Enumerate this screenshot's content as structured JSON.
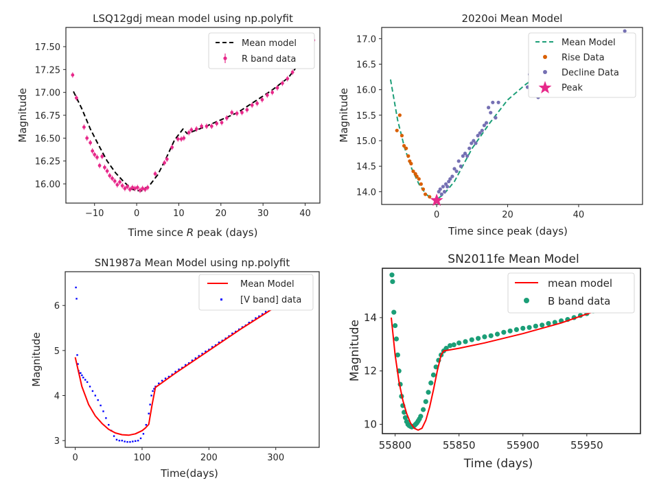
{
  "chart_data": [
    {
      "type": "scatter",
      "title": "LSQ12gdj mean model using np.polyfit",
      "xlabel_pre": "Time since ",
      "xlabel_italic": "R",
      "xlabel_post": " peak (days)",
      "ylabel": "Magnitude",
      "xlim": [
        -16.8,
        43.5
      ],
      "ylim": [
        17.71,
        15.79
      ],
      "y_inverted": true,
      "xticks": [
        -10,
        0,
        10,
        20,
        30,
        40
      ],
      "xtick_labels": [
        "−10",
        "0",
        "10",
        "20",
        "30",
        "40"
      ],
      "yticks": [
        16.0,
        16.25,
        16.5,
        16.75,
        17.0,
        17.25,
        17.5
      ],
      "ytick_labels": [
        "16.00",
        "16.25",
        "16.50",
        "16.75",
        "17.00",
        "17.25",
        "17.50"
      ],
      "legend_loc": "upper right",
      "series": [
        {
          "name": "Mean model",
          "style": "dashed-line",
          "color": "#000000",
          "x": [
            -15,
            -13,
            -11,
            -9,
            -7,
            -5,
            -3,
            -1,
            1,
            3,
            5,
            7,
            9,
            11,
            12,
            16,
            20,
            24,
            28,
            32,
            36,
            40,
            42
          ],
          "y": [
            17.01,
            16.82,
            16.6,
            16.42,
            16.25,
            16.12,
            16.02,
            15.94,
            15.92,
            15.98,
            16.1,
            16.28,
            16.48,
            16.6,
            16.55,
            16.62,
            16.7,
            16.78,
            16.9,
            17.02,
            17.16,
            17.4,
            17.58
          ]
        },
        {
          "name": "R band data",
          "style": "errorbar-points",
          "color": "#e7298a",
          "x": [
            -15.2,
            -14.3,
            -12.5,
            -11.8,
            -11.0,
            -10.5,
            -10.0,
            -9.4,
            -8.8,
            -8.2,
            -7.6,
            -7.0,
            -6.4,
            -5.8,
            -5.2,
            -4.6,
            -4.0,
            -3.4,
            -2.8,
            -2.2,
            -1.6,
            -1.0,
            -0.4,
            0.2,
            0.8,
            1.4,
            2.0,
            2.6,
            4.4,
            6.6,
            7.2,
            8.4,
            9.8,
            10.6,
            11.2,
            12.4,
            13.0,
            14.2,
            15.4,
            16.6,
            17.8,
            19.0,
            20.2,
            21.4,
            22.6,
            23.8,
            25.0,
            26.2,
            27.4,
            28.6,
            29.8,
            31.0,
            32.2,
            33.4,
            34.6,
            35.8,
            37.0,
            38.2,
            39.4,
            40.6,
            42.0
          ],
          "y": [
            17.19,
            16.94,
            16.62,
            16.5,
            16.45,
            16.36,
            16.32,
            16.29,
            16.2,
            16.3,
            16.18,
            16.14,
            16.09,
            16.06,
            16.03,
            15.99,
            16.02,
            15.98,
            15.95,
            15.97,
            15.94,
            15.96,
            15.95,
            15.96,
            15.93,
            15.95,
            15.94,
            15.96,
            16.11,
            16.23,
            16.27,
            16.4,
            16.49,
            16.49,
            16.5,
            16.56,
            16.59,
            16.6,
            16.63,
            16.63,
            16.63,
            16.66,
            16.67,
            16.72,
            16.78,
            16.77,
            16.78,
            16.81,
            16.86,
            16.88,
            16.92,
            16.97,
            17.0,
            17.05,
            17.1,
            17.15,
            17.22,
            17.3,
            17.37,
            17.45,
            17.57
          ]
        }
      ]
    },
    {
      "type": "scatter",
      "title": "2020oi Mean Model",
      "xlabel": "Time since peak (days)",
      "ylabel": "Magnitude",
      "xlim": [
        -15.5,
        58
      ],
      "ylim": [
        17.22,
        13.75
      ],
      "y_inverted": true,
      "xticks": [
        0,
        20,
        40
      ],
      "xtick_labels": [
        "0",
        "20",
        "40"
      ],
      "yticks": [
        14.0,
        14.5,
        15.0,
        15.5,
        16.0,
        16.5,
        17.0
      ],
      "ytick_labels": [
        "14.0",
        "14.5",
        "15.0",
        "15.5",
        "16.0",
        "16.5",
        "17.0"
      ],
      "legend_loc": "upper right",
      "series": [
        {
          "name": "Mean Model",
          "style": "dashed-line",
          "color": "#1b9e77",
          "x": [
            -13.0,
            -11.0,
            -9.0,
            -7.0,
            -5.0,
            -3.0,
            -1.0,
            0.0,
            2.0,
            5.0,
            10.0,
            15.0,
            20.0,
            25.0,
            30.0,
            35.0,
            40.0,
            43.0
          ],
          "y": [
            16.2,
            15.4,
            14.85,
            14.45,
            14.15,
            13.95,
            13.85,
            13.85,
            13.95,
            14.2,
            14.85,
            15.35,
            15.8,
            16.1,
            16.35,
            16.5,
            16.62,
            16.68
          ]
        },
        {
          "name": "Rise Data",
          "style": "points",
          "color": "#d95f02",
          "x": [
            -11.2,
            -10.4,
            -9.8,
            -9.2,
            -8.6,
            -8.0,
            -7.6,
            -7.2,
            -6.6,
            -6.0,
            -5.6,
            -5.0,
            -4.4,
            -3.8,
            -3.2,
            -2.0
          ],
          "y": [
            15.2,
            15.5,
            15.1,
            14.9,
            14.85,
            14.7,
            14.6,
            14.55,
            14.4,
            14.35,
            14.3,
            14.25,
            14.15,
            14.05,
            13.95,
            13.9
          ]
        },
        {
          "name": "Decline Data",
          "style": "points",
          "color": "#7570b3",
          "x": [
            0.6,
            1.0,
            1.4,
            1.8,
            2.2,
            2.6,
            3.0,
            3.4,
            3.8,
            4.4,
            5.0,
            5.6,
            6.2,
            6.8,
            7.4,
            8.0,
            8.6,
            9.2,
            9.8,
            10.4,
            11.0,
            11.6,
            12.2,
            12.8,
            13.4,
            14.0,
            14.6,
            15.2,
            15.8,
            16.6,
            17.4,
            25.6,
            26.2,
            26.8,
            27.4,
            28.0,
            28.6,
            29.2,
            29.8,
            35.0,
            35.6,
            36.2,
            36.8,
            37.4,
            38.0,
            38.6,
            39.2,
            39.8,
            40.4,
            41.0,
            41.6,
            42.2,
            42.8,
            53.0
          ],
          "y": [
            14.0,
            14.05,
            13.95,
            14.1,
            14.0,
            14.15,
            14.1,
            14.2,
            14.25,
            14.3,
            14.45,
            14.4,
            14.6,
            14.5,
            14.7,
            14.75,
            14.7,
            14.85,
            14.95,
            15.0,
            14.95,
            15.1,
            15.15,
            15.2,
            15.3,
            15.35,
            15.65,
            15.55,
            15.75,
            15.45,
            15.75,
            16.05,
            16.3,
            16.0,
            16.85,
            16.35,
            15.85,
            16.2,
            16.45,
            16.45,
            16.55,
            16.6,
            16.5,
            16.55,
            16.4,
            16.65,
            16.7,
            16.5,
            16.3,
            16.65,
            16.7,
            16.75,
            16.72,
            17.15
          ]
        },
        {
          "name": "Peak",
          "style": "star",
          "color": "#e7298a",
          "x": [
            0.0
          ],
          "y": [
            13.83
          ]
        }
      ]
    },
    {
      "type": "scatter",
      "title": "SN1987a Mean Model using np.polyfit",
      "xlabel": "Time(days)",
      "ylabel": "Magnitude",
      "xlim": [
        -15,
        365
      ],
      "ylim": [
        6.75,
        2.85
      ],
      "y_inverted": true,
      "xticks": [
        0,
        100,
        200,
        300
      ],
      "xtick_labels": [
        "0",
        "100",
        "200",
        "300"
      ],
      "yticks": [
        3,
        4,
        5,
        6
      ],
      "ytick_labels": [
        "3",
        "4",
        "5",
        "6"
      ],
      "legend_loc": "upper right",
      "series": [
        {
          "name": "Mean Model",
          "style": "line",
          "color": "#ff0000",
          "x": [
            0,
            10,
            20,
            30,
            40,
            50,
            60,
            70,
            80,
            90,
            100,
            105,
            110,
            115,
            120,
            150,
            200,
            250,
            300,
            350
          ],
          "y": [
            4.85,
            4.2,
            3.8,
            3.55,
            3.38,
            3.25,
            3.17,
            3.13,
            3.12,
            3.15,
            3.22,
            3.28,
            3.36,
            3.8,
            4.18,
            4.5,
            5.0,
            5.5,
            5.97,
            6.5
          ],
          "dense": false
        },
        {
          "name": "[V band] data",
          "style": "small-points",
          "color": "#0000ff",
          "x": [
            1,
            2,
            3,
            4,
            5,
            6,
            8,
            10,
            12,
            15,
            18,
            22,
            26,
            30,
            34,
            38,
            42,
            46,
            50,
            54,
            58,
            62,
            66,
            70,
            74,
            78,
            82,
            86,
            90,
            94,
            98,
            102,
            106,
            110,
            112,
            114,
            116,
            118,
            120,
            125,
            130,
            135,
            140,
            145,
            150,
            155,
            160,
            165,
            170,
            175,
            180,
            185,
            190,
            195,
            200,
            205,
            210,
            215,
            220,
            225,
            230,
            235,
            240,
            245,
            250,
            255,
            260,
            265,
            270,
            275,
            280,
            285,
            290,
            295,
            300,
            305,
            310,
            315,
            320,
            325,
            330,
            335,
            340,
            345,
            350
          ],
          "y": [
            6.4,
            6.15,
            4.9,
            4.7,
            4.55,
            4.5,
            4.5,
            4.45,
            4.4,
            4.35,
            4.3,
            4.2,
            4.1,
            4.0,
            3.9,
            3.78,
            3.65,
            3.5,
            3.35,
            3.22,
            3.1,
            3.02,
            3.0,
            3.0,
            2.98,
            2.97,
            2.97,
            2.98,
            2.99,
            3.0,
            3.05,
            3.15,
            3.35,
            3.6,
            3.8,
            4.0,
            4.1,
            4.15,
            4.2,
            4.27,
            4.33,
            4.38,
            4.42,
            4.47,
            4.53,
            4.58,
            4.62,
            4.68,
            4.72,
            4.78,
            4.83,
            4.88,
            4.93,
            4.98,
            5.02,
            5.08,
            5.12,
            5.18,
            5.22,
            5.27,
            5.32,
            5.38,
            5.42,
            5.47,
            5.52,
            5.56,
            5.62,
            5.66,
            5.72,
            5.76,
            5.81,
            5.86,
            5.9,
            5.96,
            6.0,
            6.05,
            6.1,
            6.15,
            6.2,
            6.25,
            6.3,
            6.35,
            6.42,
            6.48,
            6.55
          ]
        }
      ]
    },
    {
      "type": "scatter",
      "title": "SN2011fe Mean Model",
      "xlabel": "Time (days)",
      "ylabel": "Magnitude",
      "xlim": [
        55790,
        55992
      ],
      "ylim": [
        15.85,
        9.65
      ],
      "y_inverted": true,
      "xticks": [
        55800,
        55850,
        55900,
        55950
      ],
      "xtick_labels": [
        "55800",
        "55850",
        "55900",
        "55950"
      ],
      "yticks": [
        10,
        12,
        14
      ],
      "ytick_labels": [
        "10",
        "12",
        "14"
      ],
      "legend_loc": "upper right",
      "series": [
        {
          "name": "mean model",
          "style": "line",
          "color": "#ff0000",
          "x": [
            55797,
            55800,
            55803,
            55806,
            55809,
            55812,
            55815,
            55818,
            55821,
            55824,
            55827,
            55830,
            55833,
            55836,
            55838,
            55850,
            55870,
            55900,
            55930,
            55960,
            55980
          ],
          "y": [
            14.0,
            12.6,
            11.6,
            10.9,
            10.4,
            10.05,
            9.85,
            9.78,
            9.85,
            10.15,
            10.65,
            11.3,
            12.0,
            12.6,
            12.75,
            12.85,
            13.05,
            13.4,
            13.8,
            14.3,
            14.95
          ]
        },
        {
          "name": "B band data",
          "style": "points",
          "color": "#1b9e77",
          "x": [
            55797.5,
            55798,
            55799,
            55800,
            55801,
            55802,
            55803,
            55804,
            55805,
            55806,
            55807,
            55808,
            55809,
            55810,
            55811,
            55812,
            55813,
            55814,
            55815,
            55816,
            55817,
            55818,
            55819,
            55820,
            55822,
            55824,
            55826,
            55828,
            55830,
            55832,
            55834,
            55836,
            55838,
            55840,
            55843,
            55846,
            55850,
            55855,
            55860,
            55865,
            55870,
            55875,
            55880,
            55885,
            55890,
            55895,
            55900,
            55905,
            55910,
            55915,
            55920,
            55925,
            55930,
            55935,
            55940,
            55945,
            55950,
            55955,
            55960,
            55965,
            55970,
            55975,
            55980
          ],
          "y": [
            15.6,
            15.35,
            14.2,
            13.7,
            13.2,
            12.6,
            12.0,
            11.5,
            11.05,
            10.7,
            10.45,
            10.25,
            10.1,
            10.0,
            9.95,
            9.92,
            9.9,
            9.92,
            9.95,
            10.0,
            10.05,
            10.12,
            10.2,
            10.3,
            10.55,
            10.85,
            11.2,
            11.55,
            11.85,
            12.15,
            12.4,
            12.6,
            12.75,
            12.85,
            12.95,
            12.98,
            13.05,
            13.1,
            13.17,
            13.22,
            13.28,
            13.32,
            13.38,
            13.45,
            13.5,
            13.55,
            13.6,
            13.63,
            13.68,
            13.72,
            13.78,
            13.82,
            13.88,
            13.93,
            14.0,
            14.08,
            14.15,
            14.25,
            14.33,
            14.45,
            14.6,
            14.75,
            14.95
          ]
        }
      ]
    }
  ]
}
